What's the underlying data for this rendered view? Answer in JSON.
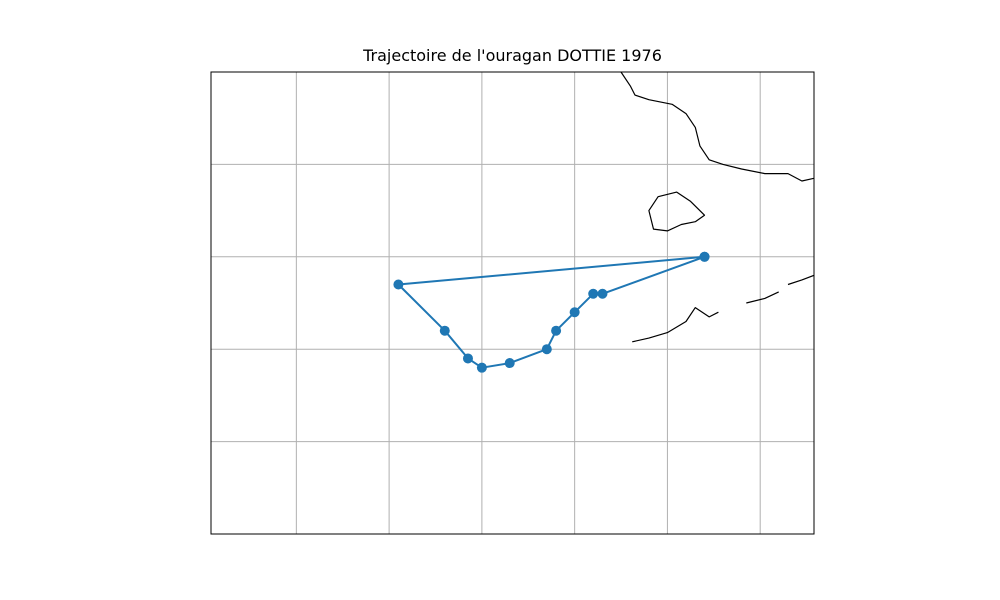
{
  "title": "Trajectoire de l'ouragan DOTTIE 1976",
  "colors": {
    "track": "#1f77b4",
    "grid": "#b0b0b0",
    "coastline": "#000000",
    "frame": "#000000",
    "background": "#ffffff"
  },
  "chart_data": {
    "type": "line",
    "title": "Trajectoire de l'ouragan DOTTIE 1976",
    "xlabel": "",
    "ylabel": "",
    "grid": true,
    "x_unit": "degrees longitude",
    "y_unit": "degrees latitude",
    "xlim": [
      -84.92,
      -78.42
    ],
    "ylim": [
      20.0,
      25.0
    ],
    "grid_x": [
      -84.0,
      -83.0,
      -82.0,
      -81.0,
      -80.0,
      -79.0
    ],
    "grid_y": [
      21.0,
      22.0,
      23.0,
      24.0
    ],
    "series": [
      {
        "marker": "circle",
        "points": [
          {
            "lon": -79.6,
            "lat": 23.0
          },
          {
            "lon": -80.7,
            "lat": 22.6
          },
          {
            "lon": -80.8,
            "lat": 22.6
          },
          {
            "lon": -81.0,
            "lat": 22.4
          },
          {
            "lon": -81.2,
            "lat": 22.2
          },
          {
            "lon": -81.3,
            "lat": 22.0
          },
          {
            "lon": -81.7,
            "lat": 21.85
          },
          {
            "lon": -82.0,
            "lat": 21.8
          },
          {
            "lon": -82.15,
            "lat": 21.9
          },
          {
            "lon": -82.4,
            "lat": 22.2
          },
          {
            "lon": -82.9,
            "lat": 22.7
          },
          {
            "lon": -79.6,
            "lat": 23.0
          }
        ]
      }
    ],
    "coastlines": [
      {
        "name": "florida-peninsula",
        "closed": false,
        "points": [
          [
            -80.5,
            25.0
          ],
          [
            -80.4,
            24.85
          ],
          [
            -80.35,
            24.75
          ],
          [
            -80.2,
            24.7
          ],
          [
            -79.95,
            24.65
          ],
          [
            -79.8,
            24.55
          ],
          [
            -79.7,
            24.4
          ],
          [
            -79.65,
            24.2
          ],
          [
            -79.55,
            24.05
          ],
          [
            -79.4,
            24.0
          ],
          [
            -79.2,
            23.95
          ],
          [
            -78.95,
            23.9
          ],
          [
            -78.7,
            23.9
          ],
          [
            -78.55,
            23.82
          ],
          [
            -78.42,
            23.85
          ]
        ]
      },
      {
        "name": "lake-okeechobee",
        "closed": true,
        "points": [
          [
            -80.1,
            23.65
          ],
          [
            -79.9,
            23.7
          ],
          [
            -79.75,
            23.6
          ],
          [
            -79.6,
            23.45
          ],
          [
            -79.7,
            23.38
          ],
          [
            -79.85,
            23.35
          ],
          [
            -80.0,
            23.28
          ],
          [
            -80.15,
            23.3
          ],
          [
            -80.2,
            23.5
          ]
        ]
      },
      {
        "name": "florida-keys",
        "closed": false,
        "points": [
          [
            -80.38,
            22.08
          ],
          [
            -80.2,
            22.12
          ],
          [
            -80.0,
            22.18
          ],
          [
            -79.8,
            22.3
          ],
          [
            -79.7,
            22.45
          ],
          [
            -79.55,
            22.35
          ],
          [
            -79.45,
            22.4
          ]
        ]
      },
      {
        "name": "keys-east",
        "closed": false,
        "points": [
          [
            -79.15,
            22.5
          ],
          [
            -78.95,
            22.55
          ],
          [
            -78.8,
            22.62
          ]
        ]
      },
      {
        "name": "cuba-north-coast",
        "closed": false,
        "points": [
          [
            -78.7,
            22.7
          ],
          [
            -78.55,
            22.75
          ],
          [
            -78.42,
            22.8
          ]
        ]
      }
    ]
  }
}
